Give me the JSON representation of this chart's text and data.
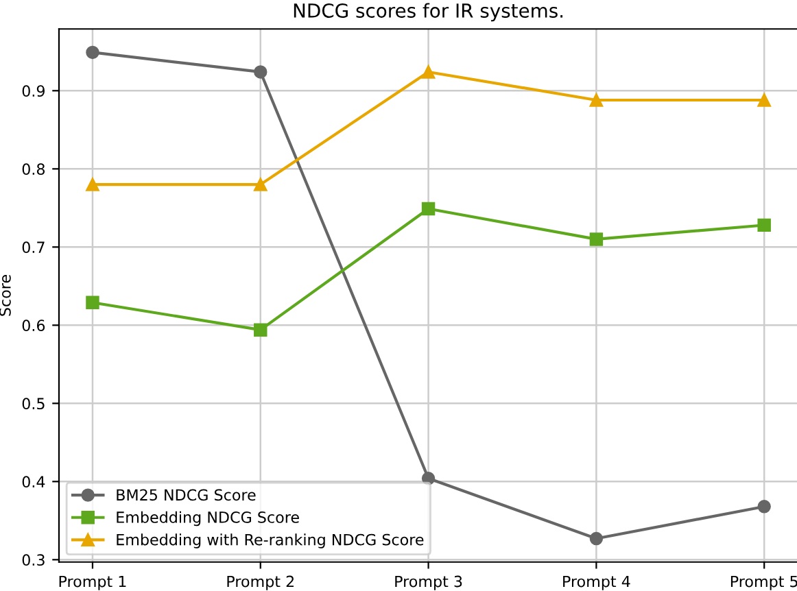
{
  "chart_data": {
    "type": "line",
    "title": "NDCG scores for IR systems.",
    "ylabel": "Score",
    "categories": [
      "Prompt 1",
      "Prompt 2",
      "Prompt 3",
      "Prompt 4",
      "Prompt 5"
    ],
    "series": [
      {
        "name": "BM25 NDCG Score",
        "color": "#666666",
        "marker": "circle",
        "values": [
          0.949,
          0.924,
          0.404,
          0.327,
          0.368
        ]
      },
      {
        "name": "Embedding NDCG Score",
        "color": "#5ea81e",
        "marker": "square",
        "values": [
          0.629,
          0.594,
          0.749,
          0.71,
          0.728
        ]
      },
      {
        "name": "Embedding with Re-ranking NDCG Score",
        "color": "#e8a700",
        "marker": "triangle",
        "values": [
          0.78,
          0.78,
          0.924,
          0.888,
          0.888
        ]
      }
    ],
    "ylim": [
      0.297,
      0.979
    ],
    "yticks": [
      0.3,
      0.4,
      0.5,
      0.6,
      0.7,
      0.8,
      0.9
    ],
    "grid": true,
    "legend": "bottom left",
    "line_style": "solid"
  }
}
